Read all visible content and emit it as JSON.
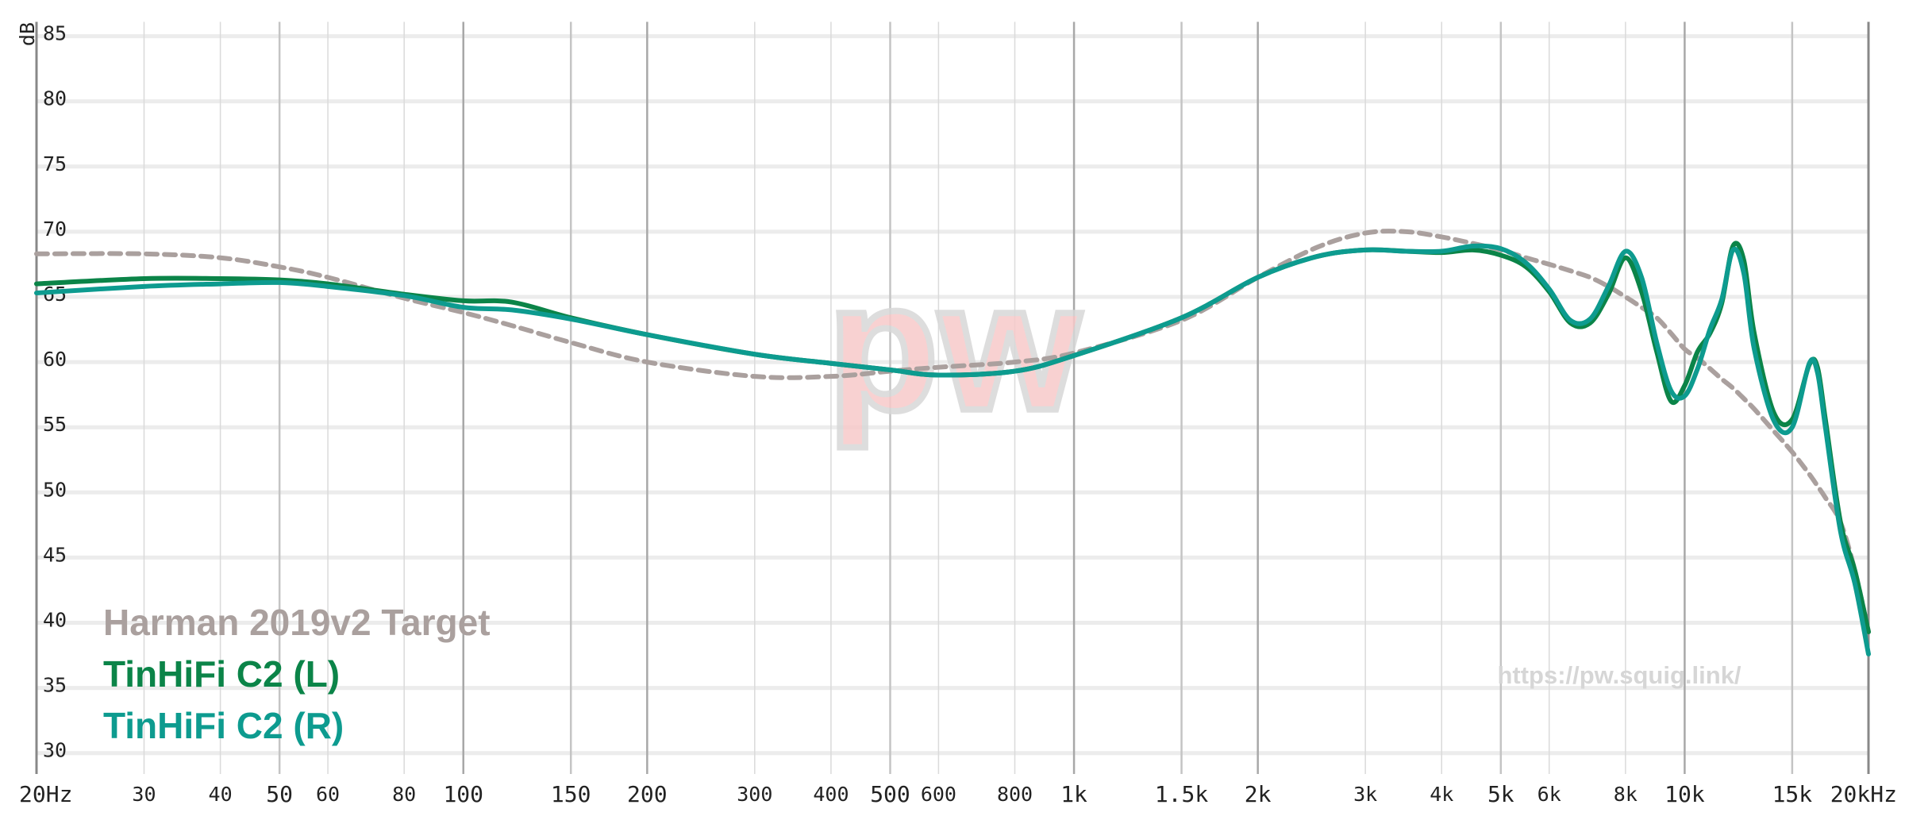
{
  "chart_data": {
    "type": "line",
    "y_axis_label": "dB",
    "logo": "pw",
    "watermark": "https://pw.squig.link/",
    "xscale": "log",
    "grid": true,
    "legend": "lower left",
    "x": [
      20,
      30,
      40,
      50,
      60,
      80,
      100,
      120,
      150,
      200,
      300,
      400,
      500,
      600,
      800,
      1000,
      1500,
      2000,
      2500,
      3000,
      3500,
      4000,
      4500,
      5000,
      5500,
      6000,
      6500,
      7000,
      7500,
      8000,
      8500,
      9000,
      9500,
      10000,
      10500,
      11000,
      11500,
      12000,
      12500,
      13000,
      14000,
      15000,
      16000,
      16500,
      17000,
      18000,
      19000,
      20000
    ],
    "series": [
      {
        "name": "Harman 2019v2 Target",
        "color": "#aaa09e",
        "dashed": true,
        "values": [
          68.3,
          68.3,
          68,
          67.3,
          66.5,
          64.9,
          63.8,
          62.8,
          61.5,
          60,
          58.9,
          58.9,
          59.3,
          59.6,
          60,
          60.7,
          63.2,
          66.5,
          68.8,
          69.9,
          70,
          69.6,
          69.1,
          68.6,
          68,
          67.5,
          67,
          66.5,
          65.8,
          65,
          64.2,
          63.4,
          62.2,
          61,
          60.3,
          59.5,
          58.7,
          58,
          57.2,
          56.4,
          54.7,
          53.1,
          51.4,
          50.5,
          49.6,
          47.7,
          44,
          39.3
        ]
      },
      {
        "name": "TinHiFi C2 (L)",
        "color": "#0b8448",
        "values": [
          66,
          66.4,
          66.4,
          66.3,
          66,
          65.2,
          64.7,
          64.6,
          63.4,
          62.1,
          60.6,
          59.9,
          59.4,
          59,
          59.3,
          60.5,
          63.4,
          66.5,
          68.1,
          68.6,
          68.5,
          68.4,
          68.6,
          68.2,
          67.3,
          65.4,
          63,
          63,
          65.2,
          68,
          65.4,
          60.8,
          57,
          58.2,
          60.8,
          62.2,
          64.5,
          68.9,
          67.8,
          62.2,
          56.1,
          55.6,
          59.8,
          59.6,
          55.6,
          47.7,
          44,
          39.3
        ]
      },
      {
        "name": "TinHiFi C2 (R)",
        "color": "#0d9b8f",
        "values": [
          65.3,
          65.8,
          66,
          66.1,
          65.8,
          65.1,
          64.2,
          64,
          63.3,
          62.1,
          60.6,
          59.9,
          59.4,
          59,
          59.3,
          60.5,
          63.4,
          66.5,
          68.1,
          68.6,
          68.5,
          68.5,
          68.9,
          68.7,
          67.6,
          65.6,
          63.2,
          63.3,
          65.8,
          68.5,
          66.5,
          61.5,
          57.8,
          57.4,
          59.5,
          62.5,
          64.8,
          68.6,
          66.8,
          61,
          55.5,
          55,
          59.9,
          59.2,
          55,
          47,
          43,
          37.6
        ]
      }
    ],
    "xlim": [
      20,
      20000
    ],
    "ylim": [
      28.4,
      86.1
    ],
    "xticks": [
      {
        "value": 20,
        "label": "20Hz"
      },
      30,
      40,
      50,
      60,
      80,
      100,
      150,
      200,
      300,
      400,
      500,
      600,
      800,
      {
        "value": 1000,
        "label": "1k"
      },
      {
        "value": 1500,
        "label": "1.5k"
      },
      {
        "value": 2000,
        "label": "2k"
      },
      {
        "value": 3000,
        "label": "3k"
      },
      {
        "value": 4000,
        "label": "4k"
      },
      {
        "value": 5000,
        "label": "5k"
      },
      {
        "value": 6000,
        "label": "6k"
      },
      {
        "value": 8000,
        "label": "8k"
      },
      {
        "value": 10000,
        "label": "10k"
      },
      {
        "value": 15000,
        "label": "15k"
      },
      {
        "value": 20000,
        "label": "20kHz"
      }
    ],
    "yticks": [
      30,
      35,
      40,
      45,
      50,
      55,
      60,
      65,
      70,
      75,
      80,
      85
    ]
  }
}
